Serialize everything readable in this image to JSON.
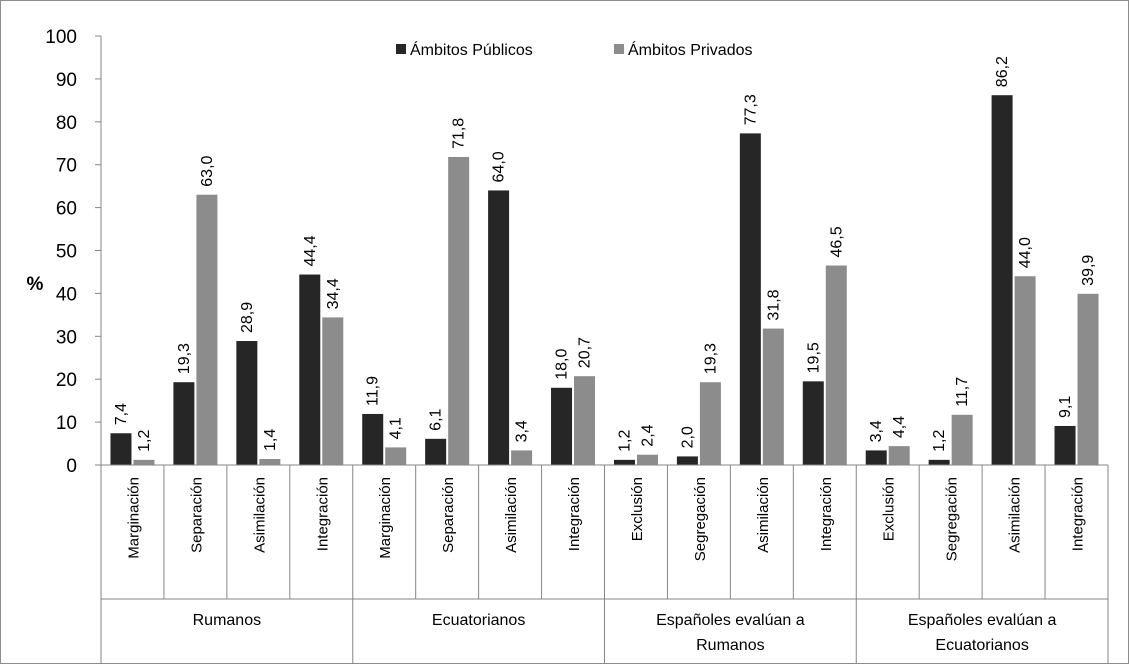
{
  "chart_data": {
    "type": "bar",
    "ylabel": "%",
    "ylim": [
      0,
      100
    ],
    "ytick_step": 10,
    "grid": false,
    "legend_position": "top-center",
    "groups": [
      {
        "label": "Rumanos",
        "categories": [
          "Marginación",
          "Separación",
          "Asimilación",
          "Integración"
        ]
      },
      {
        "label": "Ecuatorianos",
        "categories": [
          "Marginación",
          "Separación",
          "Asimilación",
          "Integración"
        ]
      },
      {
        "label": "Españoles evalúan a\nRumanos",
        "categories": [
          "Exclusión",
          "Segregación",
          "Asimilación",
          "Integración"
        ]
      },
      {
        "label": "Españoles evalúan a\nEcuatorianos",
        "categories": [
          "Exclusión",
          "Segregación",
          "Asimilación",
          "Integración"
        ]
      }
    ],
    "series": [
      {
        "name": "Ámbitos Públicos",
        "color": "#262626",
        "values": [
          7.4,
          19.3,
          28.9,
          44.4,
          11.9,
          6.1,
          64.0,
          18.0,
          1.2,
          2.0,
          77.3,
          19.5,
          3.4,
          1.2,
          86.2,
          9.1
        ],
        "labels": [
          "7,4",
          "19,3",
          "28,9",
          "44,4",
          "11,9",
          "6,1",
          "64,0",
          "18,0",
          "1,2",
          "2,0",
          "77,3",
          "19,5",
          "3,4",
          "1,2",
          "86,2",
          "9,1"
        ]
      },
      {
        "name": "Ámbitos Privados",
        "color": "#8c8c8c",
        "values": [
          1.2,
          63.0,
          1.4,
          34.4,
          4.1,
          71.8,
          3.4,
          20.7,
          2.4,
          19.3,
          31.8,
          46.5,
          4.4,
          11.7,
          44.0,
          39.9
        ],
        "labels": [
          "1,2",
          "63,0",
          "1,4",
          "34,4",
          "4,1",
          "71,8",
          "3,4",
          "20,7",
          "2,4",
          "19,3",
          "31,8",
          "46,5",
          "4,4",
          "11,7",
          "44,0",
          "39,9"
        ]
      }
    ]
  }
}
